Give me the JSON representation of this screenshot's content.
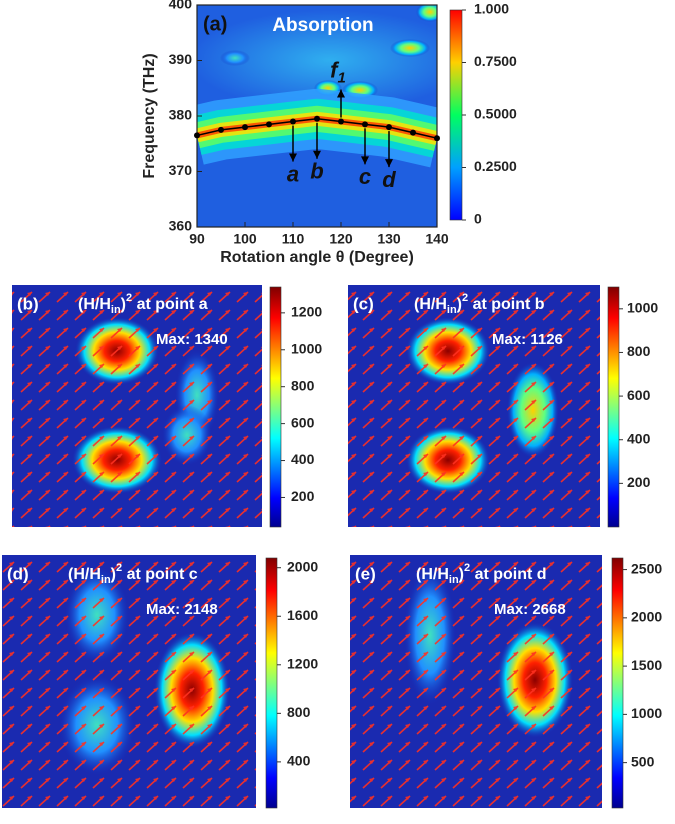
{
  "chart_data": [
    {
      "type": "line",
      "panel_label": "(a)",
      "title": "Absorption",
      "xlabel": "Rotation angle θ (Degree)",
      "ylabel": "Frequency (THz)",
      "xlim": [
        90,
        140
      ],
      "ylim": [
        360,
        400
      ],
      "xticks": [
        90,
        100,
        110,
        120,
        130,
        140
      ],
      "yticks": [
        360,
        370,
        380,
        390,
        400
      ],
      "x": [
        90,
        95,
        100,
        105,
        110,
        115,
        120,
        125,
        130,
        135,
        140
      ],
      "series": [
        {
          "color": "#000000",
          "values": [
            376.5,
            377.5,
            378,
            378.5,
            379,
            379.5,
            379,
            378.5,
            378,
            377,
            376
          ]
        }
      ],
      "point_labels": [
        "a",
        "b",
        "c",
        "d"
      ],
      "mode_label": [
        "f",
        "1"
      ],
      "colorbar": {
        "lim": [
          0,
          1
        ],
        "ticks": [
          0,
          {
            "value": 0.25,
            "label": "0.2500"
          },
          {
            "value": 0.5,
            "label": "0.5000"
          },
          {
            "value": 0.75,
            "label": "0.7500"
          },
          {
            "value": 1,
            "label": "1.000"
          }
        ]
      }
    },
    {
      "type": "field",
      "panel_label": "(b)",
      "title": [
        "(H/H",
        "in",
        ")",
        "2",
        " at point a"
      ],
      "annotation": "Max: 1340",
      "colorbar": {
        "lim": [
          40,
          1340
        ],
        "ticks": [
          200,
          400,
          600,
          800,
          1000,
          1200
        ]
      }
    },
    {
      "type": "field",
      "panel_label": "(c)",
      "title": [
        "(H/H",
        "in",
        ")",
        "2",
        " at point b"
      ],
      "annotation": "Max: 1126",
      "colorbar": {
        "lim": [
          0,
          1100
        ],
        "ticks": [
          200,
          400,
          600,
          800,
          1000
        ]
      }
    },
    {
      "type": "field",
      "panel_label": "(d)",
      "title": [
        "(H/H",
        "in",
        ")",
        "2",
        " at point c"
      ],
      "annotation": "Max: 2148",
      "colorbar": {
        "lim": [
          20,
          2080
        ],
        "ticks": [
          400,
          800,
          1200,
          1600,
          2000
        ]
      }
    },
    {
      "type": "field",
      "panel_label": "(e)",
      "title": [
        "(H/H",
        "in",
        ")",
        "2",
        " at point d"
      ],
      "annotation": "Max: 2668",
      "colorbar": {
        "lim": [
          30,
          2620
        ],
        "ticks": [
          500,
          1000,
          1500,
          2000,
          2500
        ]
      }
    }
  ]
}
